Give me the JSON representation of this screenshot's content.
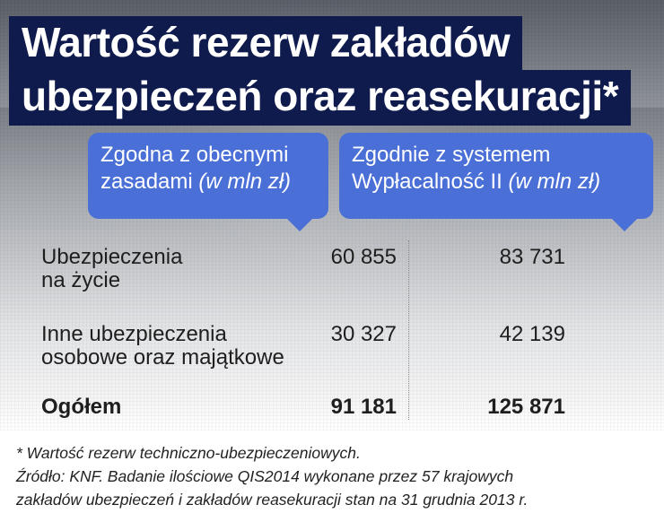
{
  "title": {
    "line1": "Wartość rezerw zakładów",
    "line2": "ubezpieczeń oraz reasekuracji*"
  },
  "chart_data": {
    "type": "table",
    "columns": [
      {
        "line1": "Zgodna z obecnymi",
        "line2_plain": "zasadami ",
        "line2_italic": "(w mln zł)"
      },
      {
        "line1": "Zgodnie z systemem",
        "line2_plain": "Wypłacalność II ",
        "line2_italic": "(w mln zł)"
      }
    ],
    "rows": [
      {
        "label_lines": [
          "Ubezpieczenia",
          "na życie"
        ],
        "values": [
          "60 855",
          "83 731"
        ],
        "bold": false
      },
      {
        "label_lines": [
          "Inne ubezpieczenia",
          "osobowe oraz majątkowe"
        ],
        "values": [
          "30 327",
          "42 139"
        ],
        "bold": false
      },
      {
        "label_lines": [
          "Ogółem"
        ],
        "values": [
          "91 181",
          "125 871"
        ],
        "bold": true
      }
    ]
  },
  "footnote": {
    "note": "* Wartość rezerw techniczno-ubezpieczeniowych.",
    "source_line1": "Źródło: KNF. Badanie ilościowe QIS2014 wykonane przez 57 krajowych",
    "source_line2": "zakładów ubezpieczeń i zakładów reasekuracji stan na 31 grudnia 2013 r."
  },
  "colors": {
    "title_band": "#0f1a4d",
    "bubble": "#4a6fd6",
    "text": "#1e1e1e"
  }
}
